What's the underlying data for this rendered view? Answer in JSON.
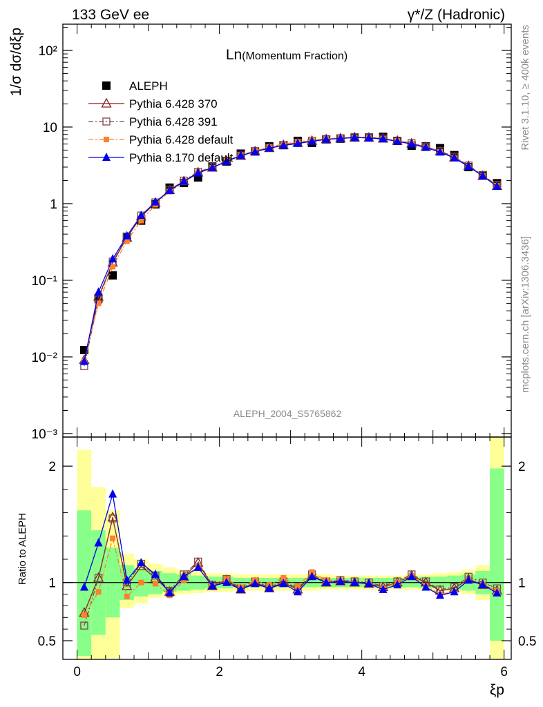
{
  "header": {
    "left_title": "133 GeV ee",
    "right_title": "γ*/Z (Hadronic)"
  },
  "side_labels": {
    "rivet": "Rivet 3.1.10, ≥ 400k events",
    "mcplots": "mcplots.cern.ch [arXiv:1306.3436]"
  },
  "analysis_id": "ALEPH_2004_S5765862",
  "colors": {
    "aleph": "#000000",
    "p370": "#8b1a1a",
    "p391": "#7a4a4a",
    "p6def": "#ff7f2a",
    "p8def": "#0000ee",
    "band_inner": "#88ff88",
    "band_outer": "#ffff99"
  },
  "chart_data": [
    {
      "type": "scatter",
      "panel": "main",
      "title": "Ln(Momentum Fraction)",
      "title_main": "Ln",
      "title_paren": "(Momentum Fraction)",
      "ylabel": "1/σ dσ/dξp",
      "yscale": "log",
      "ylim": [
        0.0009,
        220
      ],
      "xlim": [
        -0.2,
        6.1
      ],
      "y_ticks": [
        {
          "value": 0.001,
          "label": "10⁻³"
        },
        {
          "value": 0.01,
          "label": "10⁻²"
        },
        {
          "value": 0.1,
          "label": "10⁻¹"
        },
        {
          "value": 1,
          "label": "1"
        },
        {
          "value": 10,
          "label": "10"
        },
        {
          "value": 100,
          "label": "10²"
        }
      ],
      "x": [
        0.1,
        0.3,
        0.5,
        0.7,
        0.9,
        1.1,
        1.3,
        1.5,
        1.7,
        1.9,
        2.1,
        2.3,
        2.5,
        2.7,
        2.9,
        3.1,
        3.3,
        3.5,
        3.7,
        3.9,
        4.1,
        4.3,
        4.5,
        4.7,
        4.9,
        5.1,
        5.3,
        5.5,
        5.7,
        5.9
      ],
      "legend_position": "top-left",
      "series": [
        {
          "name": "ALEPH",
          "key": "aleph",
          "marker": "square-filled",
          "line": "none",
          "values": [
            0.0123,
            0.058,
            0.116,
            0.37,
            0.6,
            0.98,
            1.62,
            1.86,
            2.2,
            3.05,
            3.55,
            4.5,
            4.8,
            5.6,
            5.8,
            6.6,
            6.2,
            6.9,
            7.05,
            7.3,
            7.3,
            7.45,
            6.6,
            5.7,
            5.6,
            5.3,
            4.3,
            3.0,
            2.35,
            1.85
          ]
        },
        {
          "name": "Pythia 6.428 370",
          "key": "p370",
          "marker": "triangle-open",
          "line": "solid",
          "values": [
            0.0091,
            0.061,
            0.17,
            0.36,
            0.68,
            1.02,
            1.5,
            1.96,
            2.55,
            2.95,
            3.6,
            4.2,
            4.8,
            5.3,
            5.8,
            6.2,
            6.6,
            6.9,
            7.1,
            7.3,
            7.25,
            7.05,
            6.6,
            6.1,
            5.5,
            4.8,
            4.0,
            3.1,
            2.3,
            1.7
          ]
        },
        {
          "name": "Pythia 6.428 391",
          "key": "p391",
          "marker": "square-open",
          "line": "dashdot",
          "values": [
            0.0076,
            0.056,
            0.175,
            0.37,
            0.7,
            1.04,
            1.51,
            2.0,
            2.6,
            3.0,
            3.65,
            4.25,
            4.85,
            5.35,
            5.85,
            6.25,
            6.65,
            6.95,
            7.15,
            7.35,
            7.3,
            7.1,
            6.65,
            6.15,
            5.55,
            4.85,
            4.1,
            3.15,
            2.35,
            1.75
          ]
        },
        {
          "name": "Pythia 6.428 default",
          "key": "p6def",
          "marker": "square-filled-small",
          "line": "dashdot",
          "values": [
            0.0088,
            0.05,
            0.15,
            0.325,
            0.6,
            0.97,
            1.44,
            1.9,
            2.5,
            2.95,
            3.65,
            4.3,
            4.9,
            5.5,
            6.0,
            6.4,
            6.75,
            7.0,
            7.2,
            7.3,
            7.25,
            7.05,
            6.6,
            6.05,
            5.45,
            4.75,
            3.95,
            3.05,
            2.3,
            1.72
          ]
        },
        {
          "name": "Pythia 8.170 default",
          "key": "p8def",
          "marker": "triangle-filled",
          "line": "solid",
          "values": [
            0.0087,
            0.07,
            0.19,
            0.38,
            0.7,
            1.05,
            1.48,
            1.95,
            2.5,
            2.95,
            3.55,
            4.25,
            4.75,
            5.3,
            5.75,
            6.1,
            6.5,
            6.9,
            7.1,
            7.3,
            7.2,
            7.0,
            6.5,
            6.0,
            5.4,
            4.7,
            3.95,
            3.05,
            2.3,
            1.68
          ]
        }
      ]
    },
    {
      "type": "line",
      "panel": "ratio",
      "ylabel": "Ratio to ALEPH",
      "xlabel": "ξp",
      "ylim": [
        0.34,
        2.25
      ],
      "xlim": [
        -0.2,
        6.1
      ],
      "x_ticks": [
        0,
        2,
        4,
        6
      ],
      "y_ticks": [
        0.5,
        1,
        2
      ],
      "x": [
        0.1,
        0.3,
        0.5,
        0.7,
        0.9,
        1.1,
        1.3,
        1.5,
        1.7,
        1.9,
        2.1,
        2.3,
        2.5,
        2.7,
        2.9,
        3.1,
        3.3,
        3.5,
        3.7,
        3.9,
        4.1,
        4.3,
        4.5,
        4.7,
        4.9,
        5.1,
        5.3,
        5.5,
        5.7,
        5.9
      ],
      "band_edges": [
        0,
        0.2,
        0.4,
        0.6,
        0.8,
        1.0,
        1.2,
        1.4,
        1.6,
        1.8,
        2.0,
        2.2,
        2.4,
        2.6,
        2.8,
        3.0,
        3.2,
        3.4,
        3.6,
        3.8,
        4.0,
        4.2,
        4.4,
        4.6,
        4.8,
        5.0,
        5.2,
        5.4,
        5.6,
        5.8,
        6.0
      ],
      "band_inner": {
        "low": [
          0.37,
          0.55,
          0.7,
          0.85,
          0.88,
          0.9,
          0.92,
          0.93,
          0.94,
          0.95,
          0.95,
          0.96,
          0.96,
          0.96,
          0.96,
          0.96,
          0.96,
          0.96,
          0.96,
          0.96,
          0.96,
          0.96,
          0.96,
          0.96,
          0.95,
          0.95,
          0.94,
          0.93,
          0.9,
          0.5
        ],
        "high": [
          1.62,
          1.45,
          1.3,
          1.15,
          1.12,
          1.1,
          1.08,
          1.07,
          1.06,
          1.05,
          1.05,
          1.04,
          1.04,
          1.04,
          1.04,
          1.04,
          1.04,
          1.04,
          1.04,
          1.04,
          1.04,
          1.04,
          1.04,
          1.04,
          1.05,
          1.05,
          1.06,
          1.07,
          1.1,
          1.98
        ]
      },
      "band_outer": {
        "low": [
          0.33,
          0.33,
          0.35,
          0.78,
          0.82,
          0.87,
          0.88,
          0.9,
          0.91,
          0.92,
          0.92,
          0.93,
          0.93,
          0.93,
          0.93,
          0.93,
          0.93,
          0.94,
          0.94,
          0.94,
          0.94,
          0.94,
          0.94,
          0.94,
          0.93,
          0.93,
          0.92,
          0.9,
          0.85,
          0.33
        ],
        "high": [
          2.14,
          1.82,
          1.62,
          1.25,
          1.2,
          1.16,
          1.13,
          1.11,
          1.1,
          1.08,
          1.08,
          1.07,
          1.07,
          1.07,
          1.07,
          1.07,
          1.07,
          1.07,
          1.06,
          1.06,
          1.06,
          1.06,
          1.06,
          1.07,
          1.07,
          1.08,
          1.09,
          1.11,
          1.15,
          2.3
        ]
      },
      "series": [
        {
          "name": "Pythia 6.428 370",
          "key": "p370",
          "values": [
            0.74,
            1.04,
            1.56,
            0.97,
            1.14,
            1.04,
            0.92,
            1.05,
            1.17,
            0.97,
            1.02,
            0.94,
            1.0,
            0.95,
            1.0,
            0.94,
            1.06,
            1.0,
            1.01,
            1.0,
            0.99,
            0.96,
            1.0,
            1.06,
            1.0,
            0.93,
            0.95,
            1.03,
            0.98,
            0.93
          ]
        },
        {
          "name": "Pythia 6.428 391",
          "key": "p391",
          "values": [
            0.63,
            1.04,
            1.55,
            1.0,
            1.16,
            1.06,
            0.93,
            1.07,
            1.18,
            0.98,
            1.03,
            0.95,
            1.01,
            0.96,
            1.01,
            0.95,
            1.07,
            1.01,
            1.02,
            1.01,
            1.0,
            0.97,
            1.01,
            1.07,
            1.01,
            0.94,
            0.96,
            1.05,
            1.0,
            0.95
          ]
        },
        {
          "name": "Pythia 6.428 default",
          "key": "p6def",
          "values": [
            0.72,
            0.92,
            1.38,
            0.88,
            1.0,
            0.99,
            0.89,
            1.02,
            1.14,
            0.97,
            1.03,
            0.96,
            1.02,
            0.98,
            1.04,
            0.97,
            1.09,
            1.02,
            1.02,
            1.0,
            0.99,
            0.95,
            1.0,
            1.06,
            0.97,
            0.9,
            0.92,
            1.02,
            0.98,
            0.93
          ]
        },
        {
          "name": "Pythia 8.170 default",
          "key": "p8def",
          "values": [
            0.96,
            1.34,
            1.76,
            1.02,
            1.17,
            1.07,
            0.91,
            1.05,
            1.13,
            0.97,
            1.0,
            0.94,
            0.99,
            0.95,
            0.99,
            0.92,
            1.05,
            1.0,
            1.01,
            1.0,
            0.99,
            0.94,
            0.98,
            1.05,
            0.96,
            0.89,
            0.92,
            1.02,
            0.98,
            0.91
          ]
        }
      ]
    }
  ]
}
